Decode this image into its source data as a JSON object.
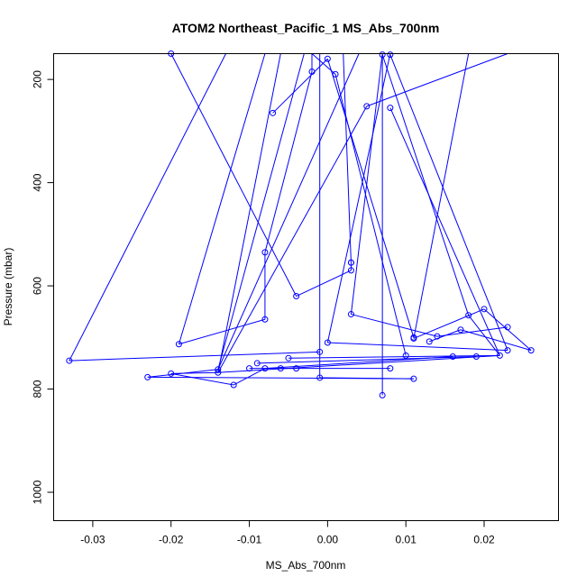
{
  "chart_data": {
    "type": "line",
    "title": "ATOM2 Northeast_Pacific_1 MS_Abs_700nm",
    "xlabel": "MS_Abs_700nm",
    "ylabel": "Pressure (mbar)",
    "xlim": [
      -0.035,
      0.0295
    ],
    "ylim": [
      1055,
      150
    ],
    "y_inverted": true,
    "grid": false,
    "xticks": [
      -0.03,
      -0.02,
      -0.01,
      0.0,
      0.01,
      0.02
    ],
    "xtick_labels": [
      "-0.03",
      "-0.02",
      "-0.01",
      "0.00",
      "0.01",
      "0.02"
    ],
    "yticks": [
      200,
      400,
      600,
      800,
      1000
    ],
    "ytick_labels": [
      "200",
      "400",
      "600",
      "800",
      "1000"
    ],
    "series_color": "#0000ff",
    "marker": "open-circle",
    "points": [
      {
        "x": -0.033,
        "y": 745
      },
      {
        "x": 0.026,
        "y": 725
      },
      {
        "x": 0.023,
        "y": 680
      },
      {
        "x": 0.02,
        "y": 645
      },
      {
        "x": 0.018,
        "y": 657
      },
      {
        "x": 0.017,
        "y": 685
      },
      {
        "x": 0.014,
        "y": 698
      },
      {
        "x": 0.013,
        "y": 708
      },
      {
        "x": 0.011,
        "y": 702
      },
      {
        "x": 0.003,
        "y": 655
      },
      {
        "x": 0.003,
        "y": 570
      },
      {
        "x": -0.004,
        "y": 620
      },
      {
        "x": 0.0,
        "y": 710
      },
      {
        "x": 0.01,
        "y": 735
      },
      {
        "x": 0.016,
        "y": 737
      },
      {
        "x": 0.019,
        "y": 737
      },
      {
        "x": 0.022,
        "y": 735
      },
      {
        "x": 0.023,
        "y": 725
      },
      {
        "x": -0.001,
        "y": 728
      },
      {
        "x": -0.005,
        "y": 740
      },
      {
        "x": -0.009,
        "y": 750
      },
      {
        "x": -0.014,
        "y": 762
      },
      {
        "x": -0.014,
        "y": 768
      },
      {
        "x": -0.02,
        "y": 770
      },
      {
        "x": -0.023,
        "y": 777
      },
      {
        "x": -0.012,
        "y": 792
      },
      {
        "x": -0.008,
        "y": 760
      },
      {
        "x": -0.006,
        "y": 760
      },
      {
        "x": -0.004,
        "y": 760
      },
      {
        "x": -0.01,
        "y": 760
      },
      {
        "x": 0.008,
        "y": 760
      },
      {
        "x": 0.007,
        "y": 812
      },
      {
        "x": 0.011,
        "y": 780
      },
      {
        "x": -0.001,
        "y": 778
      },
      {
        "x": -0.019,
        "y": 713
      },
      {
        "x": -0.008,
        "y": 665
      },
      {
        "x": -0.008,
        "y": 535
      },
      {
        "x": -0.007,
        "y": 265
      },
      {
        "x": -0.002,
        "y": 185
      },
      {
        "x": 0.0,
        "y": 160
      },
      {
        "x": 0.001,
        "y": 190
      },
      {
        "x": 0.003,
        "y": 555
      },
      {
        "x": 0.005,
        "y": 252
      },
      {
        "x": 0.008,
        "y": 255
      },
      {
        "x": 0.008,
        "y": 152
      },
      {
        "x": 0.007,
        "y": 152
      },
      {
        "x": -0.02,
        "y": 150
      },
      {
        "x": 0.011,
        "y": 700
      },
      {
        "x": 0.003,
        "y": 555
      }
    ],
    "segments": [
      [
        -0.033,
        745,
        -0.001,
        728
      ],
      [
        -0.033,
        745,
        -0.013,
        150
      ],
      [
        -0.023,
        777,
        0.011,
        780
      ],
      [
        -0.023,
        777,
        -0.014,
        762
      ],
      [
        -0.02,
        770,
        -0.012,
        792
      ],
      [
        -0.02,
        770,
        -0.014,
        768
      ],
      [
        -0.014,
        762,
        -0.003,
        150
      ],
      [
        -0.014,
        768,
        -0.006,
        150
      ],
      [
        -0.014,
        768,
        0.005,
        252
      ],
      [
        -0.014,
        762,
        0.004,
        150
      ],
      [
        -0.012,
        792,
        -0.008,
        760
      ],
      [
        -0.01,
        760,
        0.008,
        760
      ],
      [
        -0.009,
        750,
        0.019,
        737
      ],
      [
        -0.008,
        760,
        0.016,
        737
      ],
      [
        -0.006,
        760,
        -0.004,
        760
      ],
      [
        -0.005,
        740,
        0.022,
        735
      ],
      [
        -0.001,
        778,
        -0.001,
        150
      ],
      [
        -0.001,
        778,
        0.011,
        780
      ],
      [
        -0.019,
        713,
        -0.008,
        665
      ],
      [
        -0.019,
        713,
        -0.008,
        150
      ],
      [
        -0.008,
        665,
        -0.008,
        535
      ],
      [
        -0.008,
        535,
        -0.002,
        185
      ],
      [
        -0.007,
        265,
        0.0,
        160
      ],
      [
        -0.002,
        185,
        -0.002,
        150
      ],
      [
        0.0,
        160,
        0.011,
        700
      ],
      [
        0.001,
        190,
        -0.002,
        150
      ],
      [
        0.001,
        190,
        0.01,
        735
      ],
      [
        -0.02,
        150,
        -0.004,
        620
      ],
      [
        -0.004,
        620,
        0.003,
        570
      ],
      [
        0.003,
        570,
        0.003,
        555
      ],
      [
        0.003,
        555,
        0.002,
        150
      ],
      [
        0.003,
        655,
        0.014,
        698
      ],
      [
        0.0,
        710,
        0.023,
        725
      ],
      [
        0.0,
        710,
        0.008,
        150
      ],
      [
        0.005,
        252,
        0.023,
        150
      ],
      [
        0.003,
        655,
        0.007,
        150
      ],
      [
        0.007,
        812,
        0.007,
        150
      ],
      [
        0.007,
        152,
        0.018,
        657
      ],
      [
        0.008,
        255,
        0.022,
        735
      ],
      [
        0.008,
        152,
        0.023,
        725
      ],
      [
        0.011,
        702,
        0.02,
        645
      ],
      [
        0.011,
        702,
        0.018,
        150
      ],
      [
        0.013,
        708,
        0.017,
        685
      ],
      [
        0.014,
        698,
        0.023,
        680
      ],
      [
        0.017,
        685,
        0.026,
        725
      ],
      [
        0.018,
        657,
        0.022,
        735
      ],
      [
        0.02,
        645,
        0.026,
        725
      ],
      [
        -0.014,
        768,
        0.022,
        735
      ]
    ]
  }
}
